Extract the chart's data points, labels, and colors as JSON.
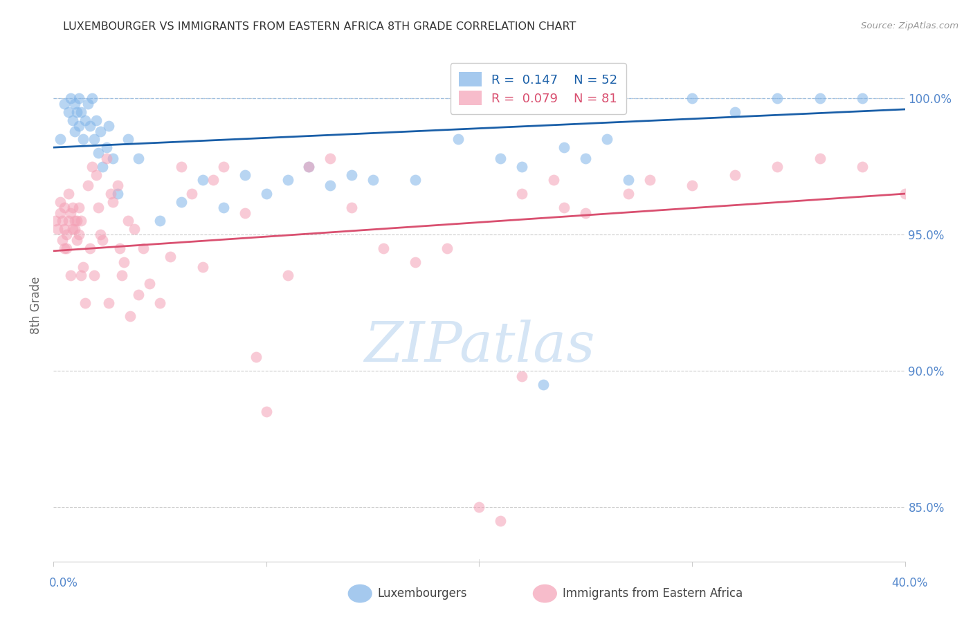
{
  "title": "LUXEMBOURGER VS IMMIGRANTS FROM EASTERN AFRICA 8TH GRADE CORRELATION CHART",
  "source": "Source: ZipAtlas.com",
  "ylabel": "8th Grade",
  "yticks": [
    100.0,
    95.0,
    90.0,
    85.0
  ],
  "ytick_labels": [
    "100.0%",
    "95.0%",
    "90.0%",
    "85.0%"
  ],
  "xlim": [
    0.0,
    40.0
  ],
  "ylim": [
    83.0,
    101.8
  ],
  "legend_blue_label": "R =  0.147    N = 52",
  "legend_pink_label": "R =  0.079    N = 81",
  "blue_color": "#7FB3E8",
  "pink_color": "#F4A0B5",
  "blue_line_color": "#1A5FA8",
  "pink_line_color": "#D95070",
  "grid_color": "#CCCCCC",
  "title_color": "#333333",
  "source_color": "#999999",
  "axis_label_color": "#666666",
  "tick_label_color": "#5588CC",
  "watermark_color": "#D5E5F5",
  "blue_scatter_x": [
    0.3,
    0.5,
    0.7,
    0.8,
    0.9,
    1.0,
    1.0,
    1.1,
    1.2,
    1.2,
    1.3,
    1.4,
    1.5,
    1.6,
    1.7,
    1.8,
    1.9,
    2.0,
    2.1,
    2.2,
    2.3,
    2.5,
    2.6,
    2.8,
    3.0,
    3.5,
    4.0,
    5.0,
    6.0,
    7.0,
    8.0,
    9.0,
    10.0,
    11.0,
    12.0,
    13.0,
    14.0,
    15.0,
    17.0,
    19.0,
    21.0,
    22.0,
    23.0,
    24.0,
    25.0,
    26.0,
    27.0,
    30.0,
    32.0,
    34.0,
    36.0,
    38.0
  ],
  "blue_scatter_y": [
    98.5,
    99.8,
    99.5,
    100.0,
    99.2,
    99.8,
    98.8,
    99.5,
    100.0,
    99.0,
    99.5,
    98.5,
    99.2,
    99.8,
    99.0,
    100.0,
    98.5,
    99.2,
    98.0,
    98.8,
    97.5,
    98.2,
    99.0,
    97.8,
    96.5,
    98.5,
    97.8,
    95.5,
    96.2,
    97.0,
    96.0,
    97.2,
    96.5,
    97.0,
    97.5,
    96.8,
    97.2,
    97.0,
    97.0,
    98.5,
    97.8,
    97.5,
    89.5,
    98.2,
    97.8,
    98.5,
    97.0,
    100.0,
    99.5,
    100.0,
    100.0,
    100.0
  ],
  "pink_scatter_x": [
    0.1,
    0.2,
    0.3,
    0.3,
    0.4,
    0.4,
    0.5,
    0.5,
    0.5,
    0.6,
    0.6,
    0.7,
    0.7,
    0.8,
    0.8,
    0.9,
    0.9,
    1.0,
    1.0,
    1.1,
    1.1,
    1.2,
    1.2,
    1.3,
    1.3,
    1.4,
    1.5,
    1.6,
    1.7,
    1.8,
    1.9,
    2.0,
    2.1,
    2.2,
    2.3,
    2.5,
    2.6,
    2.7,
    2.8,
    3.0,
    3.1,
    3.2,
    3.3,
    3.5,
    3.6,
    3.8,
    4.0,
    4.2,
    4.5,
    5.0,
    5.5,
    6.0,
    6.5,
    7.0,
    7.5,
    8.0,
    9.0,
    9.5,
    10.0,
    11.0,
    12.0,
    13.0,
    14.0,
    15.5,
    17.0,
    18.5,
    20.0,
    21.0,
    22.0,
    23.5,
    24.0,
    25.0,
    27.0,
    28.0,
    30.0,
    32.0,
    34.0,
    36.0,
    38.0,
    40.0,
    22.0
  ],
  "pink_scatter_y": [
    95.5,
    95.2,
    95.8,
    96.2,
    95.5,
    94.8,
    95.2,
    94.5,
    96.0,
    95.0,
    94.5,
    96.5,
    95.5,
    95.8,
    93.5,
    95.2,
    96.0,
    95.5,
    95.2,
    94.8,
    95.5,
    96.0,
    95.0,
    93.5,
    95.5,
    93.8,
    92.5,
    96.8,
    94.5,
    97.5,
    93.5,
    97.2,
    96.0,
    95.0,
    94.8,
    97.8,
    92.5,
    96.5,
    96.2,
    96.8,
    94.5,
    93.5,
    94.0,
    95.5,
    92.0,
    95.2,
    92.8,
    94.5,
    93.2,
    92.5,
    94.2,
    97.5,
    96.5,
    93.8,
    97.0,
    97.5,
    95.8,
    90.5,
    88.5,
    93.5,
    97.5,
    97.8,
    96.0,
    94.5,
    94.0,
    94.5,
    85.0,
    84.5,
    96.5,
    97.0,
    96.0,
    95.8,
    96.5,
    97.0,
    96.8,
    97.2,
    97.5,
    97.8,
    97.5,
    96.5,
    89.8
  ],
  "blue_trendline": [
    98.2,
    99.6
  ],
  "pink_trendline": [
    94.4,
    96.5
  ]
}
